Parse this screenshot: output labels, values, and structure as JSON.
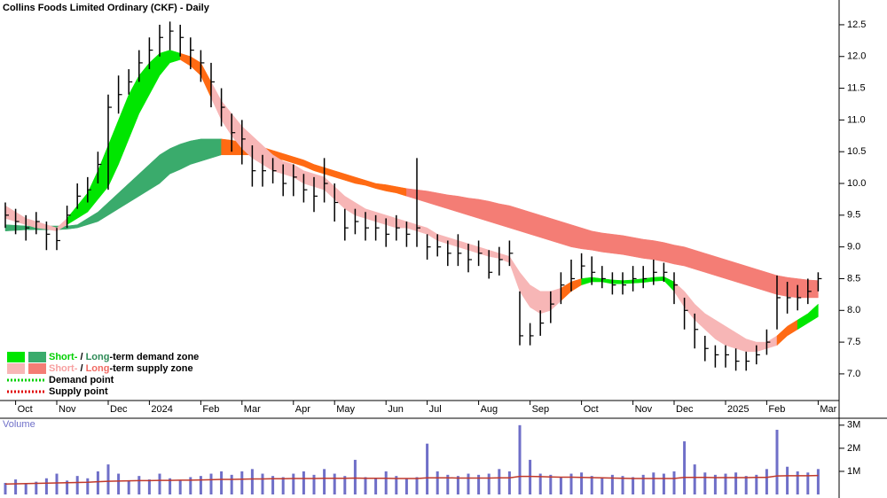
{
  "chart_data": {
    "type": "ohlc",
    "title": "Collins Foods Limited Ordinary (CKF) - Daily",
    "categories": [
      null,
      "Oct",
      null,
      null,
      null,
      "Nov",
      null,
      null,
      null,
      null,
      "Dec",
      null,
      null,
      null,
      "2024",
      null,
      null,
      null,
      null,
      "Feb",
      null,
      null,
      null,
      "Mar",
      null,
      null,
      null,
      null,
      "Apr",
      null,
      null,
      null,
      "May",
      null,
      null,
      null,
      null,
      "Jun",
      null,
      null,
      null,
      "Jul",
      null,
      null,
      null,
      null,
      "Aug",
      null,
      null,
      null,
      null,
      "Sep",
      null,
      null,
      null,
      null,
      "Oct",
      null,
      null,
      null,
      null,
      "Nov",
      null,
      null,
      null,
      "Dec",
      null,
      null,
      null,
      null,
      "2025",
      null,
      null,
      null,
      "Feb",
      null,
      null,
      null,
      null,
      "Mar"
    ],
    "high": [
      9.7,
      9.6,
      9.5,
      9.55,
      9.4,
      9.3,
      9.65,
      10.0,
      10.1,
      10.5,
      11.4,
      11.7,
      11.8,
      12.1,
      12.3,
      12.5,
      12.55,
      12.5,
      12.3,
      12.1,
      11.9,
      11.5,
      11.1,
      11.0,
      10.6,
      10.45,
      10.4,
      10.3,
      10.3,
      10.15,
      10.1,
      10.4,
      10.0,
      9.6,
      9.6,
      9.55,
      9.5,
      9.45,
      9.5,
      9.4,
      10.4,
      9.2,
      9.2,
      9.1,
      9.2,
      9.05,
      9.1,
      8.95,
      9.0,
      9.1,
      8.3,
      7.8,
      8.0,
      8.3,
      8.6,
      8.8,
      8.9,
      8.85,
      8.7,
      8.6,
      8.6,
      8.7,
      8.7,
      8.8,
      8.75,
      8.6,
      8.2,
      7.95,
      7.6,
      7.45,
      7.45,
      7.4,
      7.35,
      7.45,
      7.7,
      8.55,
      8.45,
      8.4,
      8.5,
      8.6
    ],
    "low": [
      9.3,
      9.2,
      9.1,
      9.2,
      8.95,
      8.95,
      9.3,
      9.6,
      9.7,
      10.0,
      9.9,
      11.1,
      11.4,
      11.6,
      11.8,
      12.0,
      12.1,
      12.0,
      11.8,
      11.6,
      11.2,
      10.9,
      10.5,
      10.3,
      9.95,
      9.95,
      10.0,
      9.8,
      9.8,
      9.7,
      9.55,
      9.7,
      9.4,
      9.1,
      9.2,
      9.1,
      9.1,
      9.0,
      9.1,
      9.0,
      9.0,
      8.8,
      8.85,
      8.7,
      8.7,
      8.6,
      8.7,
      8.5,
      8.55,
      8.7,
      7.45,
      7.45,
      7.6,
      7.8,
      8.1,
      8.3,
      8.5,
      8.4,
      8.35,
      8.25,
      8.25,
      8.3,
      8.35,
      8.4,
      8.45,
      8.1,
      7.7,
      7.4,
      7.2,
      7.1,
      7.1,
      7.05,
      7.05,
      7.15,
      7.3,
      7.7,
      7.95,
      8.0,
      8.1,
      8.3
    ],
    "close": [
      9.5,
      9.4,
      9.3,
      9.4,
      9.2,
      9.1,
      9.5,
      9.8,
      9.9,
      10.3,
      11.2,
      11.4,
      11.6,
      11.9,
      12.1,
      12.3,
      12.4,
      12.3,
      12.1,
      11.9,
      11.6,
      11.2,
      10.8,
      10.7,
      10.2,
      10.2,
      10.2,
      10.0,
      10.1,
      9.9,
      9.8,
      10.0,
      9.7,
      9.3,
      9.4,
      9.3,
      9.3,
      9.2,
      9.3,
      9.2,
      9.3,
      9.0,
      9.0,
      8.9,
      8.9,
      8.8,
      8.9,
      8.6,
      8.8,
      8.9,
      7.6,
      7.6,
      7.8,
      8.1,
      8.4,
      8.5,
      8.7,
      8.6,
      8.5,
      8.4,
      8.4,
      8.5,
      8.5,
      8.6,
      8.6,
      8.4,
      8.0,
      7.7,
      7.4,
      7.3,
      7.3,
      7.2,
      7.2,
      7.3,
      7.5,
      8.2,
      8.2,
      8.2,
      8.3,
      8.5
    ],
    "bar_color": "#000000",
    "short_zone": {
      "upper": [
        9.65,
        9.55,
        9.45,
        9.4,
        9.35,
        9.3,
        9.45,
        9.65,
        9.85,
        10.2,
        10.6,
        11.0,
        11.4,
        11.7,
        11.9,
        12.05,
        12.1,
        12.05,
        12.0,
        11.9,
        11.6,
        11.3,
        11.1,
        10.9,
        10.75,
        10.6,
        10.45,
        10.35,
        10.3,
        10.2,
        10.15,
        10.1,
        9.95,
        9.8,
        9.7,
        9.6,
        9.55,
        9.5,
        9.45,
        9.4,
        9.35,
        9.3,
        9.2,
        9.15,
        9.1,
        9.05,
        9.0,
        8.95,
        8.9,
        8.85,
        8.6,
        8.4,
        8.3,
        8.3,
        8.35,
        8.45,
        8.5,
        8.52,
        8.5,
        8.48,
        8.47,
        8.48,
        8.5,
        8.52,
        8.53,
        8.45,
        8.3,
        8.1,
        7.95,
        7.85,
        7.75,
        7.65,
        7.55,
        7.5,
        7.5,
        7.6,
        7.75,
        7.85,
        7.95,
        8.1
      ],
      "lower": [
        9.45,
        9.4,
        9.35,
        9.3,
        9.28,
        9.25,
        9.35,
        9.45,
        9.55,
        9.75,
        9.95,
        10.3,
        10.7,
        11.1,
        11.4,
        11.7,
        11.9,
        11.95,
        11.85,
        11.7,
        11.35,
        11.0,
        10.75,
        10.55,
        10.4,
        10.3,
        10.2,
        10.15,
        10.1,
        10.0,
        9.95,
        9.9,
        9.75,
        9.6,
        9.5,
        9.45,
        9.4,
        9.35,
        9.3,
        9.3,
        9.25,
        9.2,
        9.1,
        9.05,
        9.0,
        8.95,
        8.9,
        8.85,
        8.82,
        8.75,
        8.3,
        8.05,
        7.95,
        8.0,
        8.15,
        8.3,
        8.4,
        8.45,
        8.45,
        8.42,
        8.42,
        8.43,
        8.44,
        8.46,
        8.47,
        8.3,
        8.05,
        7.85,
        7.7,
        7.55,
        7.45,
        7.4,
        7.35,
        7.35,
        7.4,
        7.45,
        7.6,
        7.7,
        7.8,
        7.9
      ],
      "colors": [
        "#f7b6b6",
        "#f7b6b6",
        "#f7b6b6",
        "#f7b6b6",
        "#f7b6b6",
        "#f7b6b6",
        "#00e600",
        "#00e600",
        "#00e600",
        "#00e600",
        "#00e600",
        "#00e600",
        "#00e600",
        "#00e600",
        "#00e600",
        "#00e600",
        "#00e600",
        "#ff6a13",
        "#ff6a13",
        "#ff6a13",
        "#f7b6b6",
        "#f7b6b6",
        "#f7b6b6",
        "#f7b6b6",
        "#f7b6b6",
        "#f7b6b6",
        "#f7b6b6",
        "#f7b6b6",
        "#f7b6b6",
        "#f7b6b6",
        "#f7b6b6",
        "#f7b6b6",
        "#f7b6b6",
        "#f7b6b6",
        "#f7b6b6",
        "#f7b6b6",
        "#f7b6b6",
        "#f7b6b6",
        "#f7b6b6",
        "#f7b6b6",
        "#f7b6b6",
        "#f7b6b6",
        "#f7b6b6",
        "#f7b6b6",
        "#f7b6b6",
        "#f7b6b6",
        "#f7b6b6",
        "#f7b6b6",
        "#f7b6b6",
        "#f7b6b6",
        "#f7b6b6",
        "#f7b6b6",
        "#f7b6b6",
        "#f7b6b6",
        "#ff6a13",
        "#ff6a13",
        "#00e600",
        "#00e600",
        "#00e600",
        "#00e600",
        "#00e600",
        "#00e600",
        "#00e600",
        "#00e600",
        "#00e600",
        "#f7b6b6",
        "#f7b6b6",
        "#f7b6b6",
        "#f7b6b6",
        "#f7b6b6",
        "#f7b6b6",
        "#f7b6b6",
        "#f7b6b6",
        "#f7b6b6",
        "#f7b6b6",
        "#ff6a13",
        "#ff6a13",
        "#00e600",
        "#00e600",
        "#00e600"
      ]
    },
    "long_zone": {
      "upper": [
        9.35,
        9.34,
        9.33,
        9.33,
        9.33,
        9.33,
        9.33,
        9.35,
        9.45,
        9.55,
        9.7,
        9.85,
        10.0,
        10.15,
        10.3,
        10.45,
        10.55,
        10.62,
        10.67,
        10.7,
        10.7,
        10.7,
        10.68,
        10.65,
        10.6,
        10.57,
        10.52,
        10.47,
        10.42,
        10.37,
        10.3,
        10.25,
        10.2,
        10.15,
        10.1,
        10.05,
        10.0,
        9.98,
        9.95,
        9.92,
        9.9,
        9.88,
        9.85,
        9.82,
        9.8,
        9.77,
        9.75,
        9.72,
        9.68,
        9.65,
        9.6,
        9.55,
        9.5,
        9.45,
        9.4,
        9.35,
        9.3,
        9.25,
        9.22,
        9.2,
        9.18,
        9.15,
        9.12,
        9.1,
        9.07,
        9.03,
        9.0,
        8.95,
        8.9,
        8.85,
        8.8,
        8.75,
        8.7,
        8.65,
        8.6,
        8.55,
        8.52,
        8.5,
        8.48,
        8.47
      ],
      "lower": [
        9.25,
        9.26,
        9.27,
        9.27,
        9.27,
        9.27,
        9.28,
        9.3,
        9.35,
        9.4,
        9.5,
        9.6,
        9.7,
        9.8,
        9.9,
        10.0,
        10.15,
        10.22,
        10.3,
        10.35,
        10.4,
        10.45,
        10.45,
        10.45,
        10.45,
        10.43,
        10.4,
        10.37,
        10.32,
        10.27,
        10.2,
        10.15,
        10.1,
        10.05,
        10.0,
        9.97,
        9.92,
        9.88,
        9.85,
        9.8,
        9.75,
        9.7,
        9.65,
        9.6,
        9.55,
        9.5,
        9.45,
        9.4,
        9.35,
        9.3,
        9.25,
        9.2,
        9.15,
        9.1,
        9.05,
        9.0,
        8.97,
        8.95,
        8.92,
        8.9,
        8.88,
        8.85,
        8.82,
        8.8,
        8.77,
        8.73,
        8.7,
        8.65,
        8.6,
        8.55,
        8.5,
        8.45,
        8.4,
        8.35,
        8.3,
        8.25,
        8.22,
        8.2,
        8.2,
        8.2
      ],
      "colors": [
        "#3aab6c",
        "#3aab6c",
        "#3aab6c",
        "#3aab6c",
        "#3aab6c",
        "#3aab6c",
        "#3aab6c",
        "#3aab6c",
        "#3aab6c",
        "#3aab6c",
        "#3aab6c",
        "#3aab6c",
        "#3aab6c",
        "#3aab6c",
        "#3aab6c",
        "#3aab6c",
        "#3aab6c",
        "#3aab6c",
        "#3aab6c",
        "#3aab6c",
        "#3aab6c",
        "#ff6a13",
        "#ff6a13",
        "#ff6a13",
        "#ff6a13",
        "#ff6a13",
        "#ff6a13",
        "#ff6a13",
        "#ff6a13",
        "#ff6a13",
        "#ff6a13",
        "#ff6a13",
        "#ff6a13",
        "#ff6a13",
        "#ff6a13",
        "#ff6a13",
        "#ff6a13",
        "#ff6a13",
        "#ff6a13",
        "#f47d75",
        "#f47d75",
        "#f47d75",
        "#f47d75",
        "#f47d75",
        "#f47d75",
        "#f47d75",
        "#f47d75",
        "#f47d75",
        "#f47d75",
        "#f47d75",
        "#f47d75",
        "#f47d75",
        "#f47d75",
        "#f47d75",
        "#f47d75",
        "#f47d75",
        "#f47d75",
        "#f47d75",
        "#f47d75",
        "#f47d75",
        "#f47d75",
        "#f47d75",
        "#f47d75",
        "#f47d75",
        "#f47d75",
        "#f47d75",
        "#f47d75",
        "#f47d75",
        "#f47d75",
        "#f47d75",
        "#f47d75",
        "#f47d75",
        "#f47d75",
        "#f47d75",
        "#f47d75",
        "#f47d75",
        "#f47d75",
        "#f47d75",
        "#f47d75",
        "#f47d75"
      ]
    },
    "ylim": [
      6.58,
      12.89
    ],
    "yticks": [
      {
        "value": 7,
        "label": "7.0"
      },
      7.5,
      {
        "value": 8,
        "label": "8.0"
      },
      8.5,
      {
        "value": 9,
        "label": "9.0"
      },
      9.5,
      {
        "value": 10,
        "label": "10.0"
      },
      10.5,
      {
        "value": 11,
        "label": "11.0"
      },
      11.5,
      {
        "value": 12,
        "label": "12.0"
      },
      12.5
    ],
    "legend": [
      {
        "parts": [
          "Short-",
          " / ",
          "Long",
          "-term demand zone"
        ],
        "part_colors": [
          "#00d000",
          "#000000",
          "#2e8b57",
          "#000000"
        ],
        "swatches": [
          "#00e600",
          "#3aab6c"
        ]
      },
      {
        "parts": [
          "Short-",
          " / ",
          "Long",
          "-term supply zone"
        ],
        "part_colors": [
          "#f7a0a0",
          "#000000",
          "#f06a62",
          "#000000"
        ],
        "swatches": [
          "#f7b6b6",
          "#f47d75"
        ]
      },
      {
        "parts": [
          "Demand point"
        ],
        "part_colors": [
          "#000000"
        ],
        "line_color": "#00d000"
      },
      {
        "parts": [
          "Supply point"
        ],
        "part_colors": [
          "#000000"
        ],
        "line_color": "#e00000"
      }
    ],
    "volume": {
      "title": "Volume",
      "values": [
        500000,
        650000,
        450000,
        550000,
        700000,
        900000,
        600000,
        800000,
        700000,
        1000000,
        1300000,
        900000,
        600000,
        800000,
        650000,
        900000,
        700000,
        600000,
        750000,
        800000,
        900000,
        1000000,
        850000,
        1000000,
        1100000,
        900000,
        800000,
        750000,
        900000,
        1000000,
        850000,
        1100000,
        900000,
        800000,
        1500000,
        750000,
        700000,
        1000000,
        800000,
        700000,
        750000,
        2200000,
        1000000,
        850000,
        800000,
        900000,
        850000,
        900000,
        1100000,
        1000000,
        3000000,
        1500000,
        900000,
        850000,
        750000,
        900000,
        950000,
        800000,
        750000,
        850000,
        800000,
        750000,
        850000,
        950000,
        900000,
        1000000,
        2300000,
        1300000,
        950000,
        850000,
        900000,
        950000,
        800000,
        850000,
        1100000,
        2800000,
        1200000,
        1000000,
        950000,
        1100000
      ],
      "average": [
        450000,
        460000,
        470000,
        480000,
        490000,
        500000,
        510000,
        520000,
        530000,
        550000,
        570000,
        580000,
        590000,
        600000,
        600000,
        610000,
        610000,
        620000,
        620000,
        630000,
        640000,
        650000,
        650000,
        660000,
        670000,
        670000,
        680000,
        680000,
        690000,
        690000,
        690000,
        700000,
        700000,
        700000,
        710000,
        700000,
        700000,
        700000,
        690000,
        690000,
        690000,
        720000,
        720000,
        720000,
        710000,
        710000,
        710000,
        710000,
        720000,
        720000,
        780000,
        780000,
        770000,
        760000,
        750000,
        750000,
        740000,
        730000,
        720000,
        710000,
        700000,
        690000,
        690000,
        690000,
        690000,
        690000,
        740000,
        740000,
        740000,
        730000,
        730000,
        730000,
        730000,
        740000,
        740000,
        800000,
        810000,
        810000,
        810000,
        820000
      ],
      "color": "#6f6fc8",
      "average_color": "#c0392b",
      "ylim": [
        0,
        3300000
      ],
      "yticks": [
        {
          "value": 1000000,
          "label": "1M"
        },
        {
          "value": 2000000,
          "label": "2M"
        },
        {
          "value": 3000000,
          "label": "3M"
        }
      ]
    }
  }
}
